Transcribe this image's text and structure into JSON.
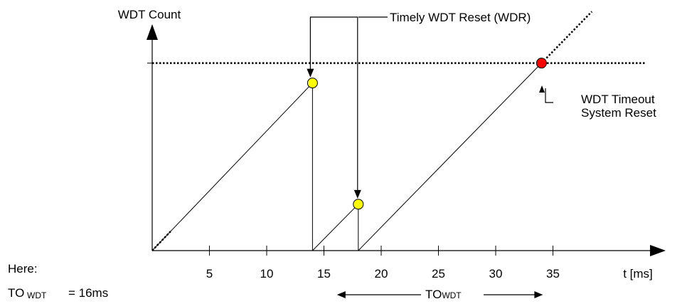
{
  "chart_data": {
    "type": "line",
    "title": "",
    "ylabel": "WDT Count",
    "xlabel": "t [ms]",
    "x_ticks": [
      5,
      10,
      15,
      20,
      25,
      30,
      35
    ],
    "xlim": [
      0,
      43.5
    ],
    "ylim": [
      0,
      1
    ],
    "timeout_level": 0.99,
    "series": [
      {
        "points": [
          [
            0,
            0
          ],
          [
            14,
            0.885
          ]
        ]
      },
      {
        "points": [
          [
            14,
            0
          ],
          [
            18,
            0.245
          ]
        ]
      },
      {
        "points": [
          [
            18,
            0
          ],
          [
            34,
            0.99
          ]
        ]
      }
    ],
    "wdr_markers": [
      {
        "x": 14,
        "y": 0.885,
        "color": "#ffff00"
      },
      {
        "x": 18,
        "y": 0.245,
        "color": "#ffff00"
      }
    ],
    "timeout_marker": {
      "x": 34,
      "y": 0.99,
      "color": "#ff0000"
    },
    "annotations": {
      "wdr": "Timely WDT Reset (WDR)",
      "timeout_line1": "WDT Timeout",
      "timeout_line2": "System Reset",
      "to_main": "TO",
      "to_sub": "WDT"
    },
    "note": {
      "here": "Here:",
      "to_main": "TO",
      "to_sub": "WDT",
      "to_value": "= 16ms"
    }
  }
}
